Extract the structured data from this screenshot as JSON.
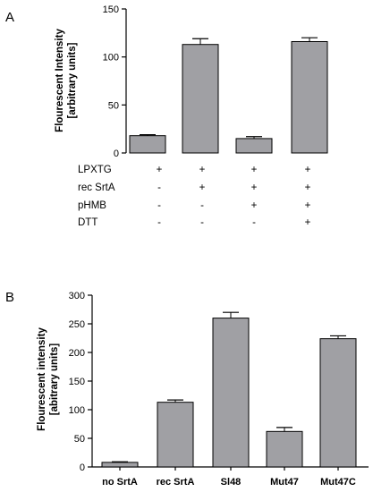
{
  "figure": {
    "panel_a_letter": "A",
    "panel_b_letter": "B"
  },
  "chart_data": [
    {
      "type": "bar",
      "panel": "A",
      "ylabel_line1": "Flourescent Intensity",
      "ylabel_line2": "[arbitrary units]",
      "ylim": [
        0,
        150
      ],
      "yticks": [
        "0",
        "50",
        "100",
        "150"
      ],
      "bar_color": "#a0a0a4",
      "values": [
        18,
        113,
        15,
        116
      ],
      "errors": [
        1,
        6,
        2,
        4
      ],
      "conditions": [
        {
          "label": "LPXTG",
          "marks": [
            "+",
            "+",
            "+",
            "+"
          ]
        },
        {
          "label": "rec SrtA",
          "marks": [
            "-",
            "+",
            "+",
            "+"
          ]
        },
        {
          "label": "pHMB",
          "marks": [
            "-",
            "-",
            "+",
            "+"
          ]
        },
        {
          "label": "DTT",
          "marks": [
            "-",
            "-",
            "-",
            "+"
          ]
        }
      ]
    },
    {
      "type": "bar",
      "panel": "B",
      "ylabel_line1": "Flourescent intensity",
      "ylabel_line2": "[abitrary units]",
      "ylim": [
        0,
        300
      ],
      "yticks": [
        "0",
        "50",
        "100",
        "150",
        "200",
        "250",
        "300"
      ],
      "bar_color": "#a0a0a4",
      "categories": [
        "no SrtA",
        "rec SrtA",
        "Sl48",
        "Mut47",
        "Mut47C"
      ],
      "values": [
        8,
        113,
        260,
        62,
        224
      ],
      "errors": [
        1,
        4,
        10,
        7,
        5
      ]
    }
  ]
}
